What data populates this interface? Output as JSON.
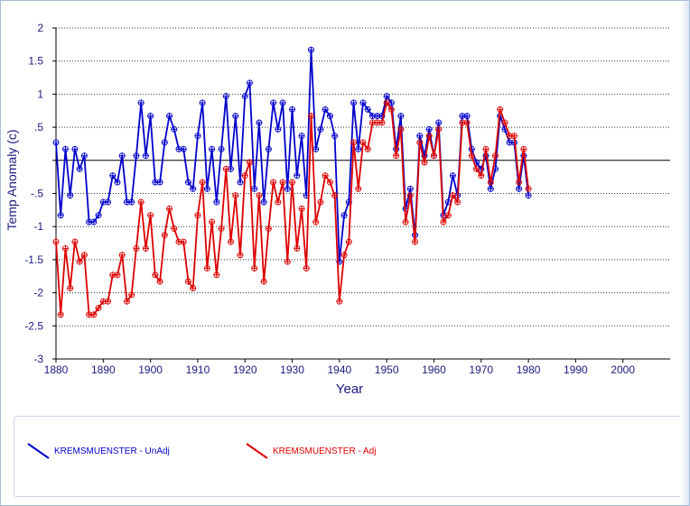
{
  "chart_data": {
    "type": "line",
    "xlabel": "Year",
    "ylabel": "Temp Anomaly (c)",
    "xlim": [
      1880,
      2010
    ],
    "ylim": [
      -3,
      2
    ],
    "x_ticks": [
      "1880",
      "1890",
      "1900",
      "1910",
      "1920",
      "1930",
      "1940",
      "1950",
      "1960",
      "1970",
      "1980",
      "1990",
      "2000"
    ],
    "y_ticks": [
      "2",
      "1.5",
      "1",
      ".5",
      "-.5",
      "-1",
      "-1.5",
      "-2",
      "-2.5",
      "-3"
    ],
    "grid": "horizontal dotted",
    "legend_position": "bottom",
    "series": [
      {
        "name": "KREMSMUENSTER - UnAdj",
        "color": "#0000cc",
        "points": [
          [
            1880,
            0.27
          ],
          [
            1881,
            -0.83
          ],
          [
            1882,
            0.17
          ],
          [
            1883,
            -0.53
          ],
          [
            1884,
            0.17
          ],
          [
            1885,
            -0.13
          ],
          [
            1886,
            0.07
          ],
          [
            1887,
            -0.93
          ],
          [
            1888,
            -0.93
          ],
          [
            1889,
            -0.83
          ],
          [
            1890,
            -0.63
          ],
          [
            1891,
            -0.63
          ],
          [
            1892,
            -0.23
          ],
          [
            1893,
            -0.33
          ],
          [
            1894,
            0.07
          ],
          [
            1895,
            -0.63
          ],
          [
            1896,
            -0.63
          ],
          [
            1897,
            0.07
          ],
          [
            1898,
            0.87
          ],
          [
            1899,
            0.07
          ],
          [
            1900,
            0.67
          ],
          [
            1901,
            -0.33
          ],
          [
            1902,
            -0.33
          ],
          [
            1903,
            0.27
          ],
          [
            1904,
            0.67
          ],
          [
            1905,
            0.47
          ],
          [
            1906,
            0.17
          ],
          [
            1907,
            0.17
          ],
          [
            1908,
            -0.33
          ],
          [
            1909,
            -0.43
          ],
          [
            1910,
            0.37
          ],
          [
            1911,
            0.87
          ],
          [
            1912,
            -0.43
          ],
          [
            1913,
            0.17
          ],
          [
            1914,
            -0.63
          ],
          [
            1915,
            0.17
          ],
          [
            1916,
            0.97
          ],
          [
            1917,
            -0.13
          ],
          [
            1918,
            0.67
          ],
          [
            1919,
            -0.33
          ],
          [
            1920,
            0.97
          ],
          [
            1921,
            1.17
          ],
          [
            1922,
            -0.43
          ],
          [
            1923,
            0.57
          ],
          [
            1924,
            -0.63
          ],
          [
            1925,
            0.17
          ],
          [
            1926,
            0.87
          ],
          [
            1927,
            0.47
          ],
          [
            1928,
            0.87
          ],
          [
            1929,
            -0.43
          ],
          [
            1930,
            0.77
          ],
          [
            1931,
            -0.23
          ],
          [
            1932,
            0.37
          ],
          [
            1933,
            -0.53
          ],
          [
            1934,
            1.67
          ],
          [
            1935,
            0.17
          ],
          [
            1936,
            0.47
          ],
          [
            1937,
            0.77
          ],
          [
            1938,
            0.67
          ],
          [
            1939,
            0.37
          ],
          [
            1940,
            -1.53
          ],
          [
            1941,
            -0.83
          ],
          [
            1942,
            -0.63
          ],
          [
            1943,
            0.87
          ],
          [
            1944,
            0.17
          ],
          [
            1945,
            0.87
          ],
          [
            1946,
            0.77
          ],
          [
            1947,
            0.67
          ],
          [
            1948,
            0.67
          ],
          [
            1949,
            0.67
          ],
          [
            1950,
            0.97
          ],
          [
            1951,
            0.87
          ],
          [
            1952,
            0.17
          ],
          [
            1953,
            0.67
          ],
          [
            1954,
            -0.73
          ],
          [
            1955,
            -0.43
          ],
          [
            1956,
            -1.13
          ],
          [
            1957,
            0.37
          ],
          [
            1958,
            0.07
          ],
          [
            1959,
            0.47
          ],
          [
            1960,
            0.07
          ],
          [
            1961,
            0.57
          ],
          [
            1962,
            -0.83
          ],
          [
            1963,
            -0.63
          ],
          [
            1964,
            -0.23
          ],
          [
            1965,
            -0.53
          ],
          [
            1966,
            0.67
          ],
          [
            1967,
            0.67
          ],
          [
            1968,
            0.17
          ],
          [
            1969,
            -0.03
          ],
          [
            1970,
            -0.13
          ],
          [
            1971,
            0.07
          ],
          [
            1972,
            -0.43
          ],
          [
            1973,
            -0.13
          ],
          [
            1974,
            0.67
          ],
          [
            1975,
            0.47
          ],
          [
            1976,
            0.27
          ],
          [
            1977,
            0.27
          ],
          [
            1978,
            -0.43
          ],
          [
            1979,
            0.07
          ],
          [
            1980,
            -0.53
          ]
        ]
      },
      {
        "name": "KREMSMUENSTER - Adj",
        "color": "#dd0000",
        "points": [
          [
            1880,
            -1.23
          ],
          [
            1881,
            -2.33
          ],
          [
            1882,
            -1.33
          ],
          [
            1883,
            -1.93
          ],
          [
            1884,
            -1.23
          ],
          [
            1885,
            -1.53
          ],
          [
            1886,
            -1.43
          ],
          [
            1887,
            -2.33
          ],
          [
            1888,
            -2.33
          ],
          [
            1889,
            -2.23
          ],
          [
            1890,
            -2.13
          ],
          [
            1891,
            -2.13
          ],
          [
            1892,
            -1.73
          ],
          [
            1893,
            -1.73
          ],
          [
            1894,
            -1.43
          ],
          [
            1895,
            -2.13
          ],
          [
            1896,
            -2.03
          ],
          [
            1897,
            -1.33
          ],
          [
            1898,
            -0.63
          ],
          [
            1899,
            -1.33
          ],
          [
            1900,
            -0.83
          ],
          [
            1901,
            -1.73
          ],
          [
            1902,
            -1.83
          ],
          [
            1903,
            -1.13
          ],
          [
            1904,
            -0.73
          ],
          [
            1905,
            -1.03
          ],
          [
            1906,
            -1.23
          ],
          [
            1907,
            -1.23
          ],
          [
            1908,
            -1.83
          ],
          [
            1909,
            -1.93
          ],
          [
            1910,
            -0.83
          ],
          [
            1911,
            -0.33
          ],
          [
            1912,
            -1.63
          ],
          [
            1913,
            -0.93
          ],
          [
            1914,
            -1.73
          ],
          [
            1915,
            -1.03
          ],
          [
            1916,
            -0.13
          ],
          [
            1917,
            -1.23
          ],
          [
            1918,
            -0.53
          ],
          [
            1919,
            -1.43
          ],
          [
            1920,
            -0.23
          ],
          [
            1921,
            -0.03
          ],
          [
            1922,
            -1.63
          ],
          [
            1923,
            -0.53
          ],
          [
            1924,
            -1.83
          ],
          [
            1925,
            -1.03
          ],
          [
            1926,
            -0.33
          ],
          [
            1927,
            -0.63
          ],
          [
            1928,
            -0.33
          ],
          [
            1929,
            -1.53
          ],
          [
            1930,
            -0.33
          ],
          [
            1931,
            -1.33
          ],
          [
            1932,
            -0.73
          ],
          [
            1933,
            -1.63
          ],
          [
            1934,
            0.67
          ],
          [
            1935,
            -0.93
          ],
          [
            1936,
            -0.63
          ],
          [
            1937,
            -0.23
          ],
          [
            1938,
            -0.33
          ],
          [
            1939,
            -0.53
          ],
          [
            1940,
            -2.13
          ],
          [
            1941,
            -1.43
          ],
          [
            1942,
            -1.23
          ],
          [
            1943,
            0.27
          ],
          [
            1944,
            -0.43
          ],
          [
            1945,
            0.27
          ],
          [
            1946,
            0.17
          ],
          [
            1947,
            0.57
          ],
          [
            1948,
            0.57
          ],
          [
            1949,
            0.57
          ],
          [
            1950,
            0.87
          ],
          [
            1951,
            0.77
          ],
          [
            1952,
            0.07
          ],
          [
            1953,
            0.47
          ],
          [
            1954,
            -0.93
          ],
          [
            1955,
            -0.53
          ],
          [
            1956,
            -1.23
          ],
          [
            1957,
            0.27
          ],
          [
            1958,
            -0.03
          ],
          [
            1959,
            0.37
          ],
          [
            1960,
            0.07
          ],
          [
            1961,
            0.47
          ],
          [
            1962,
            -0.93
          ],
          [
            1963,
            -0.83
          ],
          [
            1964,
            -0.53
          ],
          [
            1965,
            -0.63
          ],
          [
            1966,
            0.57
          ],
          [
            1967,
            0.57
          ],
          [
            1968,
            0.07
          ],
          [
            1969,
            -0.13
          ],
          [
            1970,
            -0.23
          ],
          [
            1971,
            0.17
          ],
          [
            1972,
            -0.33
          ],
          [
            1973,
            0.07
          ],
          [
            1974,
            0.77
          ],
          [
            1975,
            0.57
          ],
          [
            1976,
            0.37
          ],
          [
            1977,
            0.37
          ],
          [
            1978,
            -0.33
          ],
          [
            1979,
            0.17
          ],
          [
            1980,
            -0.43
          ]
        ]
      }
    ]
  }
}
